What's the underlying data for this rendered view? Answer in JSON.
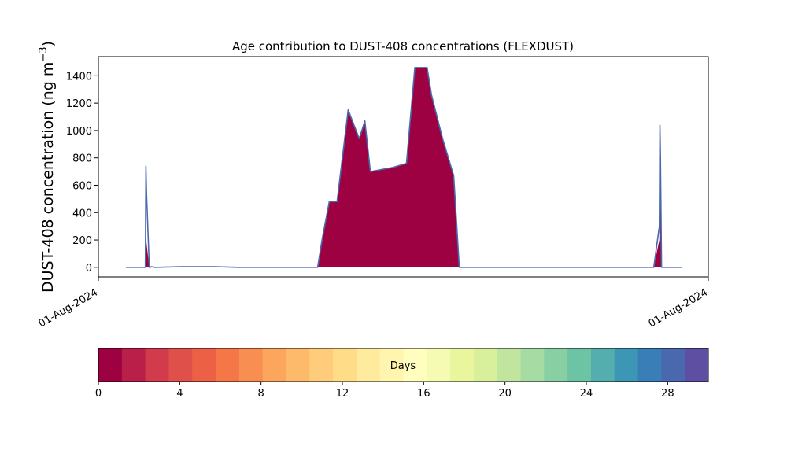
{
  "chart_data": {
    "type": "area",
    "title": "Age contribution to DUST-408 concentrations (FLEXDUST)",
    "ylabel_main": "DUST-408 concentration (ng m",
    "ylabel_sup": "−3",
    "ylabel_close": ")",
    "xlabel": "",
    "ylim": [
      -70,
      1540
    ],
    "yticks": [
      0,
      200,
      400,
      600,
      800,
      1000,
      1200,
      1400
    ],
    "xtick_labels": [
      "01-Aug-2024",
      "01-Aug-2024"
    ],
    "x": [
      0,
      0.035,
      0.036,
      0.037,
      0.042,
      0.044,
      0.046,
      0.052,
      0.055,
      0.1,
      0.16,
      0.2,
      0.34,
      0.345,
      0.353,
      0.366,
      0.38,
      0.4,
      0.42,
      0.43,
      0.44,
      0.48,
      0.505,
      0.52,
      0.527,
      0.542,
      0.55,
      0.57,
      0.59,
      0.6,
      0.623,
      0.64,
      0.7,
      0.72,
      0.9,
      0.94,
      0.95,
      0.96,
      0.961,
      0.962,
      0.964,
      1
    ],
    "total": [
      0,
      0,
      740,
      550,
      0,
      0,
      5,
      0,
      0,
      5,
      5,
      0,
      0,
      0,
      200,
      480,
      480,
      1150,
      940,
      1070,
      700,
      730,
      760,
      1460,
      1460,
      1460,
      1260,
      940,
      670,
      0,
      0,
      0,
      0,
      0,
      0,
      0,
      0,
      300,
      1040,
      800,
      0,
      0
    ],
    "fresh": [
      0,
      0,
      460,
      180,
      0,
      0,
      0,
      0,
      0,
      0,
      0,
      0,
      0,
      0,
      200,
      480,
      480,
      1150,
      940,
      1070,
      700,
      730,
      760,
      1460,
      1460,
      1460,
      1260,
      940,
      670,
      0,
      0,
      0,
      0,
      0,
      0,
      0,
      0,
      200,
      760,
      490,
      0,
      0
    ],
    "colorbar": {
      "label": "Days",
      "range": [
        0,
        30
      ],
      "ticks": [
        0,
        4,
        8,
        12,
        16,
        20,
        24,
        28
      ],
      "colors": [
        "#9e0142",
        "#b91f48",
        "#d13b4b",
        "#e0504a",
        "#ec6145",
        "#f57748",
        "#f98e52",
        "#fca55d",
        "#fdba6b",
        "#fecc7b",
        "#fedc88",
        "#feeb9d",
        "#fff5ae",
        "#fffebe",
        "#f5fbb2",
        "#e9f69d",
        "#d8ef9b",
        "#c1e59f",
        "#a6dba4",
        "#88cfa4",
        "#6cc4a5",
        "#54aead",
        "#3e96b6",
        "#3a7eb8",
        "#4a68ae",
        "#5e4fa2"
      ]
    },
    "fill_color": "#9e0142",
    "line_color": "#4a68ae"
  }
}
